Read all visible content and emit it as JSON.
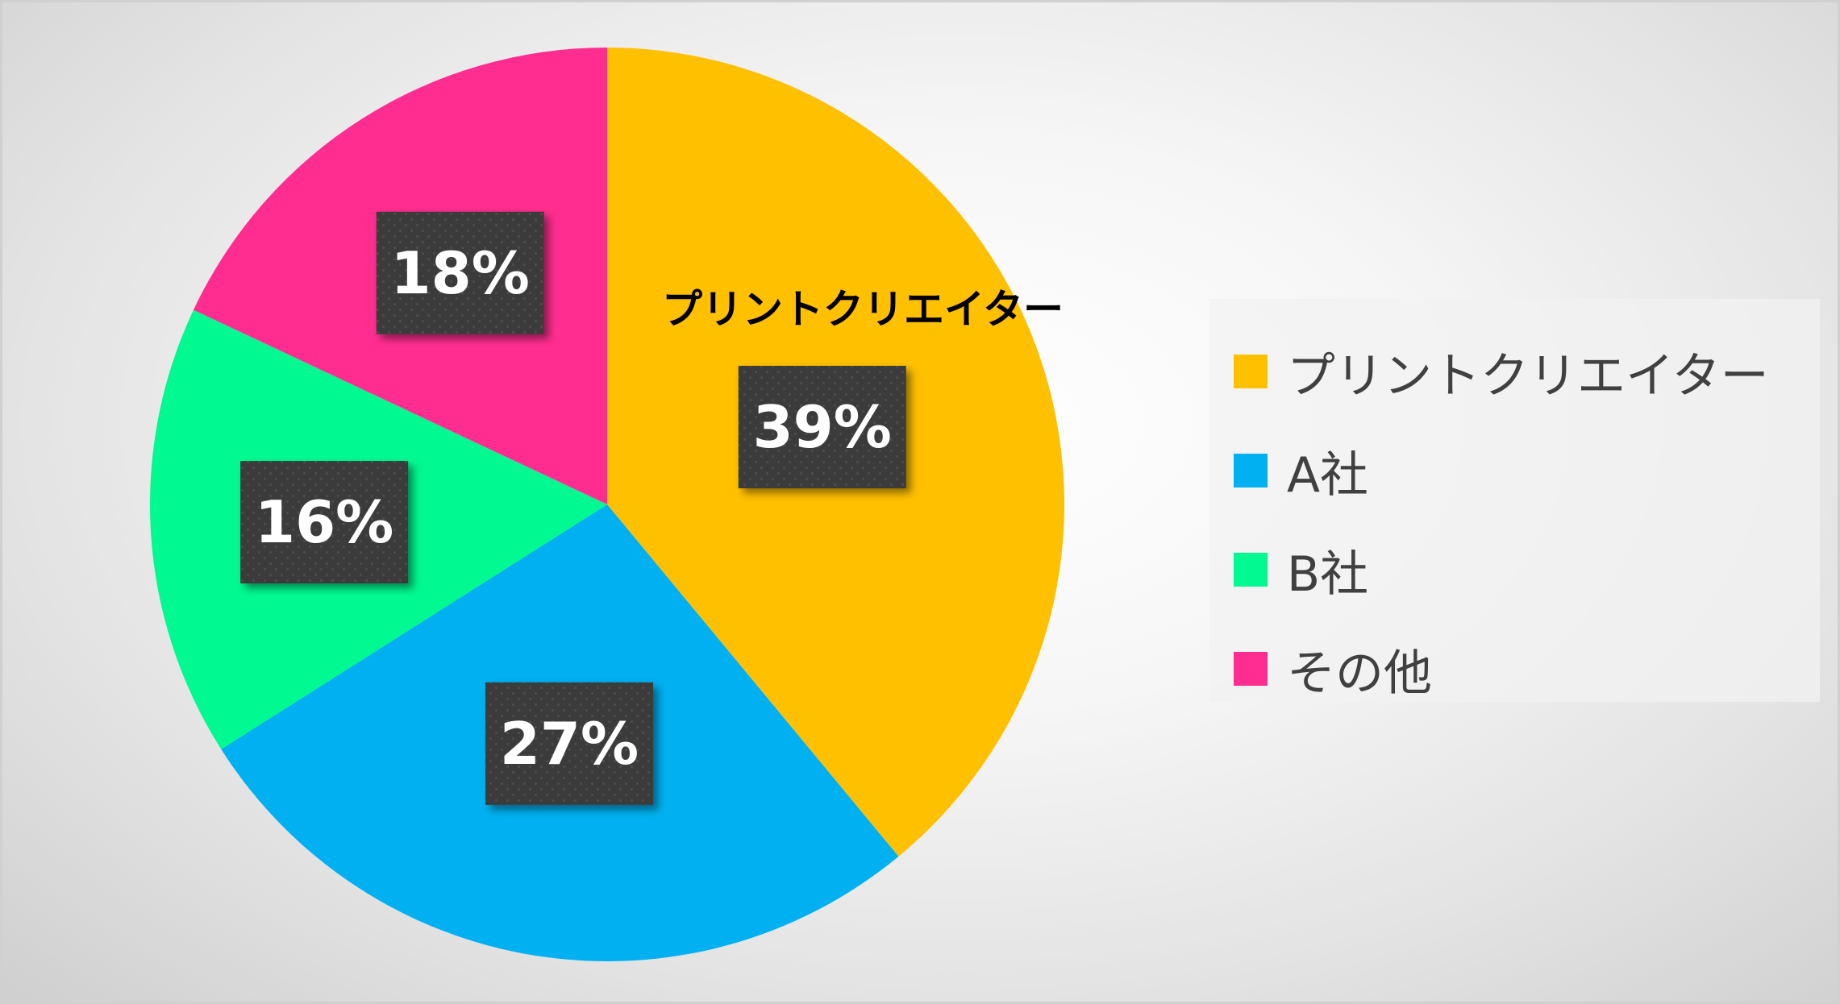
{
  "chart_data": {
    "type": "pie",
    "categories": [
      "プリントクリエイター",
      "A社",
      "B社",
      "その他"
    ],
    "values": [
      39,
      27,
      16,
      18
    ],
    "data_labels": [
      "39%",
      "27%",
      "16%",
      "18%"
    ],
    "colors": [
      "#FFC000",
      "#00B0F0",
      "#00F990",
      "#FF2D8F"
    ],
    "start_angle": "12 o'clock",
    "direction": "clockwise",
    "callout": "プリントクリエイター",
    "legend_position": "right",
    "title": ""
  }
}
